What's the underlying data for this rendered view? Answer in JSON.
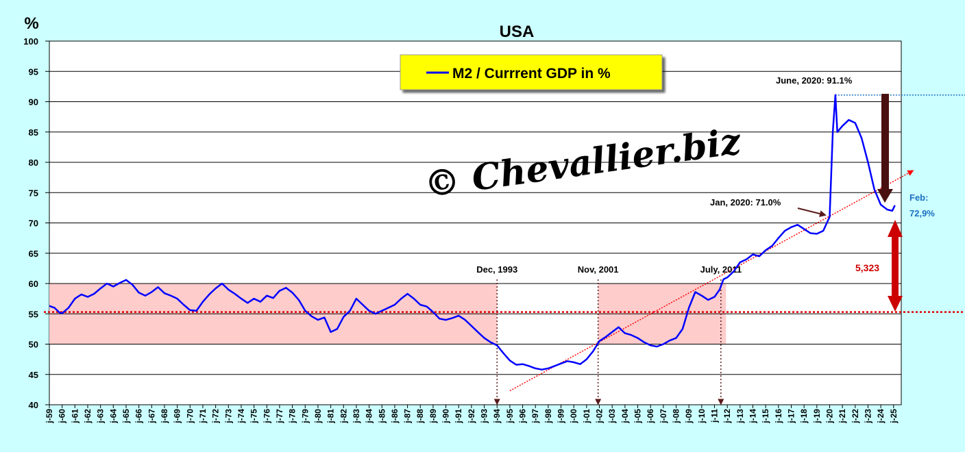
{
  "chart_data": {
    "type": "line",
    "title": "USA",
    "ylabel": "%",
    "ylim": [
      40,
      100
    ],
    "yticks": [
      40,
      45,
      50,
      55,
      60,
      65,
      70,
      75,
      80,
      85,
      90,
      95,
      100
    ],
    "x_tick_labels": [
      "j-59",
      "j-60",
      "j-61",
      "j-62",
      "j-63",
      "j-64",
      "j-65",
      "j-66",
      "j-67",
      "j-68",
      "j-69",
      "j-70",
      "j-71",
      "j-72",
      "j-73",
      "j-74",
      "j-75",
      "j-76",
      "j-77",
      "j-78",
      "j-79",
      "j-80",
      "j-81",
      "j-82",
      "j-83",
      "j-84",
      "j-85",
      "j-86",
      "j-87",
      "j-88",
      "j-89",
      "j-90",
      "j-91",
      "j-92",
      "j-93",
      "j-94",
      "j-95",
      "j-96",
      "j-97",
      "j-98",
      "j-99",
      "j-00",
      "j-01",
      "j-02",
      "j-03",
      "j-04",
      "j-05",
      "j-06",
      "j-07",
      "j-08",
      "j-09",
      "j-10",
      "j-11",
      "j-12",
      "j-13",
      "j-14",
      "j-15",
      "j-16",
      "j-17",
      "j-18",
      "j-19",
      "j-20",
      "j-21",
      "j-22",
      "j-23",
      "j-24",
      "j-25"
    ],
    "grid": true,
    "legend": "top-center",
    "series": [
      {
        "name": "M2 / Currrent GDP in %",
        "color": "#0000ff",
        "points": [
          [
            1959.0,
            56.3
          ],
          [
            1959.4,
            56.0
          ],
          [
            1959.8,
            55.2
          ],
          [
            1960.0,
            55.1
          ],
          [
            1960.5,
            56.0
          ],
          [
            1961.0,
            57.5
          ],
          [
            1961.5,
            58.2
          ],
          [
            1962.0,
            57.8
          ],
          [
            1962.5,
            58.3
          ],
          [
            1963.0,
            59.2
          ],
          [
            1963.5,
            60.0
          ],
          [
            1964.0,
            59.5
          ],
          [
            1964.5,
            60.1
          ],
          [
            1965.0,
            60.6
          ],
          [
            1965.5,
            59.8
          ],
          [
            1966.0,
            58.5
          ],
          [
            1966.5,
            58.0
          ],
          [
            1967.0,
            58.6
          ],
          [
            1967.5,
            59.4
          ],
          [
            1968.0,
            58.4
          ],
          [
            1968.5,
            58.0
          ],
          [
            1969.0,
            57.5
          ],
          [
            1969.5,
            56.5
          ],
          [
            1970.0,
            55.6
          ],
          [
            1970.5,
            55.5
          ],
          [
            1971.0,
            57.0
          ],
          [
            1971.5,
            58.2
          ],
          [
            1972.0,
            59.2
          ],
          [
            1972.5,
            60.0
          ],
          [
            1973.0,
            59.0
          ],
          [
            1973.5,
            58.3
          ],
          [
            1974.0,
            57.5
          ],
          [
            1974.5,
            56.8
          ],
          [
            1975.0,
            57.5
          ],
          [
            1975.5,
            57.0
          ],
          [
            1976.0,
            58.0
          ],
          [
            1976.5,
            57.6
          ],
          [
            1977.0,
            58.8
          ],
          [
            1977.5,
            59.3
          ],
          [
            1978.0,
            58.5
          ],
          [
            1978.5,
            57.3
          ],
          [
            1979.0,
            55.5
          ],
          [
            1979.5,
            54.6
          ],
          [
            1980.0,
            54.0
          ],
          [
            1980.5,
            54.4
          ],
          [
            1981.0,
            52.0
          ],
          [
            1981.5,
            52.5
          ],
          [
            1982.0,
            54.5
          ],
          [
            1982.5,
            55.5
          ],
          [
            1983.0,
            57.5
          ],
          [
            1983.5,
            56.5
          ],
          [
            1984.0,
            55.5
          ],
          [
            1984.5,
            55.0
          ],
          [
            1985.0,
            55.5
          ],
          [
            1985.5,
            56.0
          ],
          [
            1986.0,
            56.5
          ],
          [
            1986.5,
            57.5
          ],
          [
            1987.0,
            58.3
          ],
          [
            1987.5,
            57.5
          ],
          [
            1988.0,
            56.5
          ],
          [
            1988.5,
            56.2
          ],
          [
            1989.0,
            55.3
          ],
          [
            1989.5,
            54.2
          ],
          [
            1990.0,
            54.0
          ],
          [
            1990.5,
            54.3
          ],
          [
            1991.0,
            54.7
          ],
          [
            1991.5,
            54.0
          ],
          [
            1992.0,
            53.0
          ],
          [
            1992.5,
            52.0
          ],
          [
            1993.0,
            51.0
          ],
          [
            1993.5,
            50.3
          ],
          [
            1994.0,
            49.8
          ],
          [
            1994.5,
            48.5
          ],
          [
            1995.0,
            47.3
          ],
          [
            1995.5,
            46.6
          ],
          [
            1996.0,
            46.7
          ],
          [
            1996.5,
            46.4
          ],
          [
            1997.0,
            46.0
          ],
          [
            1997.5,
            45.8
          ],
          [
            1998.0,
            46.0
          ],
          [
            1998.5,
            46.4
          ],
          [
            1999.0,
            46.8
          ],
          [
            1999.5,
            47.2
          ],
          [
            2000.0,
            47.0
          ],
          [
            2000.5,
            46.7
          ],
          [
            2001.0,
            47.5
          ],
          [
            2001.5,
            48.8
          ],
          [
            2002.0,
            50.5
          ],
          [
            2002.5,
            51.2
          ],
          [
            2003.0,
            52.0
          ],
          [
            2003.5,
            52.8
          ],
          [
            2004.0,
            51.8
          ],
          [
            2004.5,
            51.5
          ],
          [
            2005.0,
            51.0
          ],
          [
            2005.5,
            50.3
          ],
          [
            2006.0,
            49.8
          ],
          [
            2006.5,
            49.6
          ],
          [
            2007.0,
            50.0
          ],
          [
            2007.5,
            50.6
          ],
          [
            2008.0,
            51.0
          ],
          [
            2008.5,
            52.5
          ],
          [
            2009.0,
            56.0
          ],
          [
            2009.5,
            58.6
          ],
          [
            2010.0,
            58.0
          ],
          [
            2010.5,
            57.3
          ],
          [
            2011.0,
            57.8
          ],
          [
            2011.4,
            59.0
          ],
          [
            2011.7,
            60.7
          ],
          [
            2012.0,
            61.0
          ],
          [
            2012.5,
            62.0
          ],
          [
            2013.0,
            63.5
          ],
          [
            2013.5,
            64.0
          ],
          [
            2014.0,
            64.8
          ],
          [
            2014.5,
            64.5
          ],
          [
            2015.0,
            65.5
          ],
          [
            2015.5,
            66.2
          ],
          [
            2016.0,
            67.5
          ],
          [
            2016.5,
            68.7
          ],
          [
            2017.0,
            69.3
          ],
          [
            2017.5,
            69.7
          ],
          [
            2018.0,
            69.0
          ],
          [
            2018.5,
            68.3
          ],
          [
            2019.0,
            68.2
          ],
          [
            2019.5,
            68.7
          ],
          [
            2020.0,
            71.0
          ],
          [
            2020.25,
            85.0
          ],
          [
            2020.45,
            91.1
          ],
          [
            2020.6,
            85.0
          ],
          [
            2021.0,
            86.0
          ],
          [
            2021.5,
            87.0
          ],
          [
            2022.0,
            86.5
          ],
          [
            2022.5,
            84.0
          ],
          [
            2023.0,
            80.0
          ],
          [
            2023.5,
            75.5
          ],
          [
            2024.0,
            73.0
          ],
          [
            2024.5,
            72.2
          ],
          [
            2024.9,
            72.0
          ],
          [
            2025.1,
            72.9
          ]
        ]
      }
    ],
    "reference_lines": {
      "horizontal_dotted_red_level": 55.3,
      "horizontal_dotted_blue_level": 91.1,
      "trend_line": {
        "x0": 1995.0,
        "y0": 42.3,
        "x1": 2026.5,
        "y1": 78.6,
        "color": "#ff0000"
      }
    },
    "shaded_ranges": [
      {
        "x0": 1959.0,
        "x1": 1994.0,
        "y0": 50,
        "y1": 60,
        "color": "#ffcccc"
      },
      {
        "x0": 2001.9,
        "x1": 2011.9,
        "y0": 50,
        "y1": 60,
        "color": "#ffcccc"
      }
    ],
    "vertical_markers": [
      {
        "x": 1994.0,
        "label": "Dec, 1993"
      },
      {
        "x": 2001.9,
        "label": "Nov, 2001"
      },
      {
        "x": 2011.5,
        "label": "July, 2011"
      }
    ],
    "annotations": {
      "peak": "June, 2020: 91.1%",
      "jan2020": "Jan, 2020: 71.0%",
      "feb_label": "Feb:",
      "feb_value": "72,9%",
      "gap_value": "5,323",
      "watermark": "© Chevallier.biz"
    }
  },
  "colors": {
    "background": "#ccffff",
    "series": "#0000ff",
    "shade": "#ffcccc",
    "ref_red": "#ff0000",
    "dark_arrow": "#5a1a1a",
    "big_red_arrow": "#cc0000",
    "feb_text": "#1a6fc2",
    "legend_bg": "#ffff00"
  }
}
